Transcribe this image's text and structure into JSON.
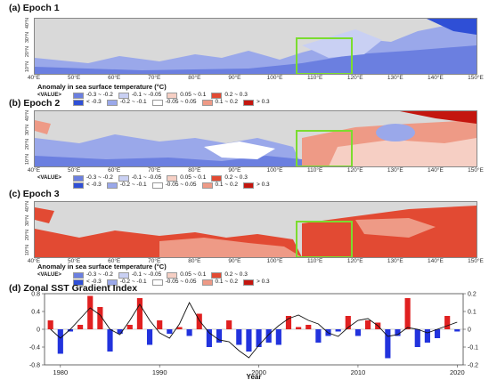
{
  "panels": [
    {
      "title": "(a) Epoch 1",
      "epoch": 1
    },
    {
      "title": "(b) Epoch 2",
      "epoch": 2
    },
    {
      "title": "(c) Epoch 3",
      "epoch": 3
    }
  ],
  "lon_ticks": [
    "40°E",
    "50°E",
    "60°E",
    "70°E",
    "80°E",
    "90°E",
    "100°E",
    "110°E",
    "120°E",
    "130°E",
    "140°E",
    "150°E"
  ],
  "lat_ticks": [
    "10°N",
    "20°N",
    "30°N",
    "40°N"
  ],
  "legend": {
    "title": "Anomaly in sea surface temperature (°C)",
    "tag": "<VALUE>",
    "row1": [
      {
        "label": "-0.3 ~ -0.2",
        "color": "#6b7fe0"
      },
      {
        "label": "-0.1 ~ -0.05",
        "color": "#c9d0f3"
      },
      {
        "label": "0.05 ~ 0.1",
        "color": "#f6cfc4"
      },
      {
        "label": "0.2 ~ 0.3",
        "color": "#e24a33"
      }
    ],
    "row2": [
      {
        "label": "< -0.3",
        "color": "#2f4fd6"
      },
      {
        "label": "-0.2 ~ -0.1",
        "color": "#9aa8ea"
      },
      {
        "label": "-0.05 ~ 0.05",
        "color": "#ffffff"
      },
      {
        "label": "0.1 ~ 0.2",
        "color": "#ee9a86"
      },
      {
        "label": "> 0.3",
        "color": "#c4160f"
      }
    ]
  },
  "chart_data": {
    "type": "bar",
    "title": "(d) Zonal SST Gradient Index",
    "xlabel": "Year",
    "x_ticks": [
      1980,
      1990,
      2000,
      2010,
      2020
    ],
    "ylim_left": [
      -0.8,
      0.8
    ],
    "yticks_left": [
      0.8,
      0.4,
      0,
      -0.4,
      -0.8
    ],
    "ylim_right": [
      -0.2,
      0.2
    ],
    "yticks_right": [
      0.2,
      0.1,
      0,
      -0.1,
      -0.2
    ],
    "bar_colors": {
      "positive": "#e02020",
      "negative": "#2233dd"
    },
    "line_color": "#111111",
    "series": [
      {
        "type": "bar",
        "axis": "left",
        "x": [
          1979,
          1980,
          1981,
          1982,
          1983,
          1984,
          1985,
          1986,
          1987,
          1988,
          1989,
          1990,
          1991,
          1992,
          1993,
          1994,
          1995,
          1996,
          1997,
          1998,
          1999,
          2000,
          2001,
          2002,
          2003,
          2004,
          2005,
          2006,
          2007,
          2008,
          2009,
          2010,
          2011,
          2012,
          2013,
          2014,
          2015,
          2016,
          2017,
          2018,
          2019,
          2020
        ],
        "values": [
          0.2,
          -0.55,
          -0.05,
          0.1,
          0.75,
          0.5,
          -0.5,
          -0.1,
          0.1,
          0.7,
          -0.35,
          0.2,
          -0.1,
          0.05,
          -0.15,
          0.35,
          -0.4,
          -0.3,
          0.2,
          -0.35,
          -0.5,
          -0.4,
          -0.3,
          -0.35,
          0.3,
          0.05,
          0.1,
          -0.3,
          -0.15,
          -0.05,
          0.3,
          -0.15,
          0.2,
          0.15,
          -0.65,
          -0.15,
          0.7,
          -0.4,
          -0.3,
          -0.2,
          0.3,
          -0.05
        ]
      },
      {
        "type": "line",
        "axis": "right",
        "x": [
          1979,
          1980,
          1981,
          1982,
          1983,
          1984,
          1985,
          1986,
          1987,
          1988,
          1989,
          1990,
          1991,
          1992,
          1993,
          1994,
          1995,
          1996,
          1997,
          1998,
          1999,
          2000,
          2001,
          2002,
          2003,
          2004,
          2005,
          2006,
          2007,
          2008,
          2009,
          2010,
          2011,
          2012,
          2013,
          2014,
          2015,
          2016,
          2017,
          2018,
          2019,
          2020
        ],
        "values": [
          0.0,
          -0.05,
          0.0,
          0.06,
          0.12,
          0.08,
          0.0,
          -0.03,
          0.05,
          0.14,
          0.05,
          -0.02,
          -0.05,
          0.03,
          0.15,
          0.05,
          -0.02,
          -0.06,
          -0.07,
          -0.12,
          -0.16,
          -0.09,
          -0.03,
          0.02,
          0.06,
          0.08,
          0.05,
          0.03,
          -0.02,
          -0.04,
          0.01,
          0.05,
          0.06,
          0.02,
          -0.04,
          -0.03,
          0.01,
          0.0,
          -0.02,
          0.0,
          0.02,
          0.04
        ]
      }
    ]
  }
}
